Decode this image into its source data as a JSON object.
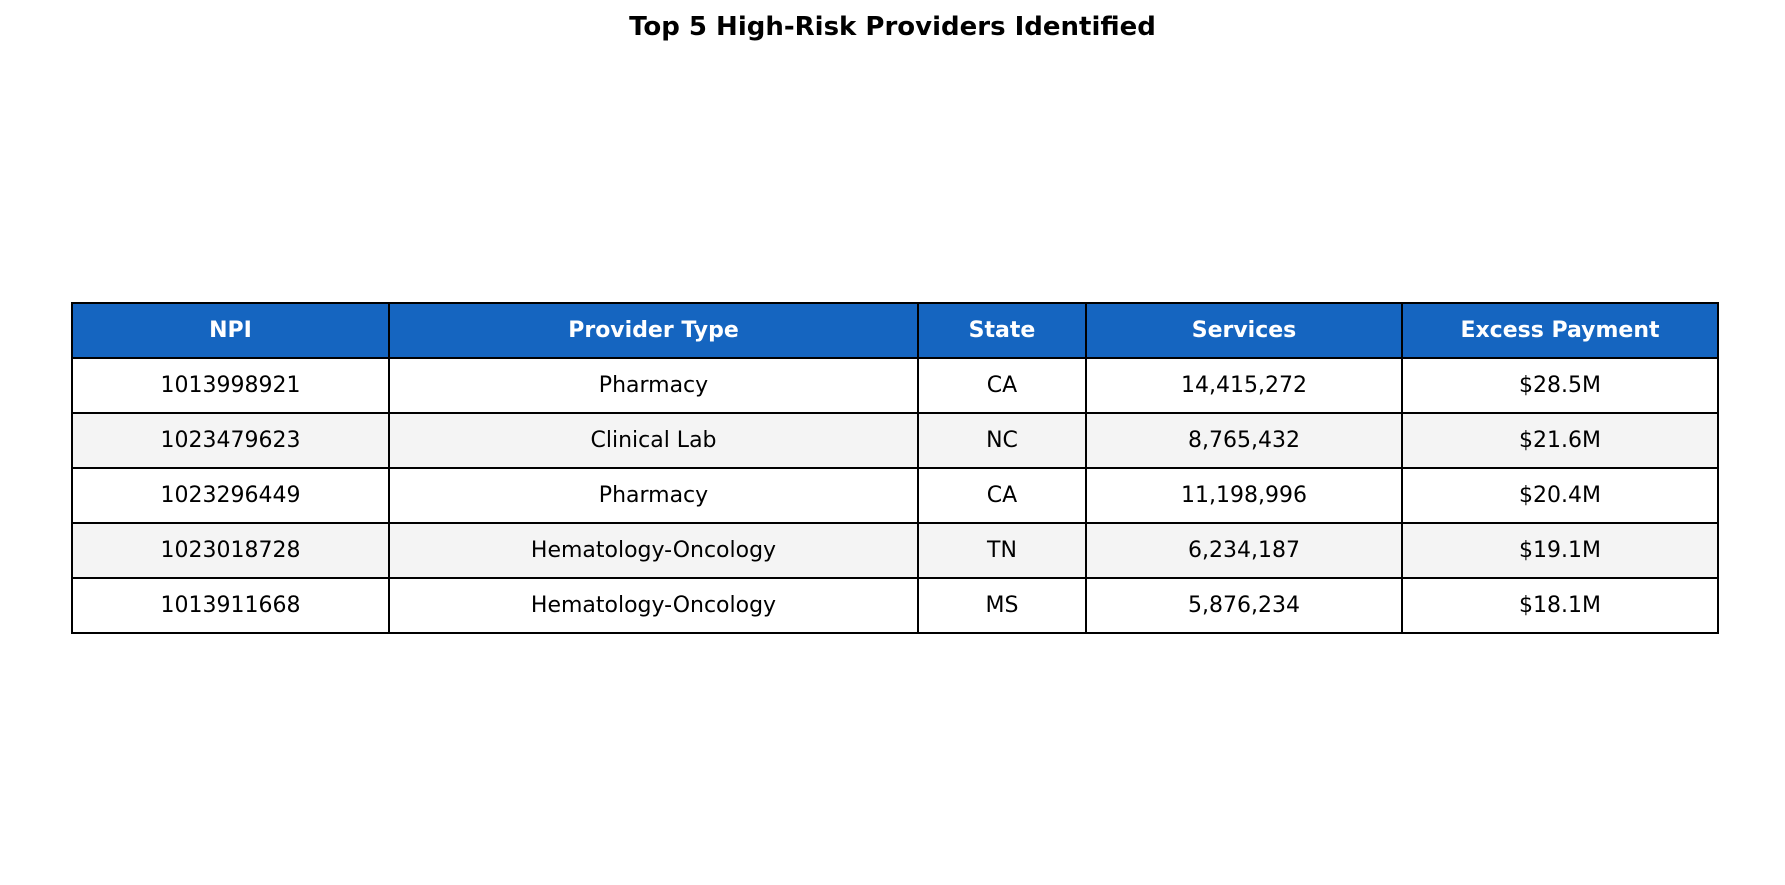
{
  "title": "Top 5 High-Risk Providers Identified",
  "colors": {
    "header_background": "#1565c0",
    "header_text": "#ffffff",
    "row_alt_background": "#f4f4f4",
    "border": "#000000"
  },
  "chart_data": {
    "type": "table",
    "title": "Top 5 High-Risk Providers Identified",
    "columns": [
      "NPI",
      "Provider Type",
      "State",
      "Services",
      "Excess Payment"
    ],
    "rows": [
      [
        "1013998921",
        "Pharmacy",
        "CA",
        "14,415,272",
        "$28.5M"
      ],
      [
        "1023479623",
        "Clinical Lab",
        "NC",
        "8,765,432",
        "$21.6M"
      ],
      [
        "1023296449",
        "Pharmacy",
        "CA",
        "11,198,996",
        "$20.4M"
      ],
      [
        "1023018728",
        "Hematology-Oncology",
        "TN",
        "6,234,187",
        "$19.1M"
      ],
      [
        "1013911668",
        "Hematology-Oncology",
        "MS",
        "5,876,234",
        "$18.1M"
      ]
    ]
  }
}
